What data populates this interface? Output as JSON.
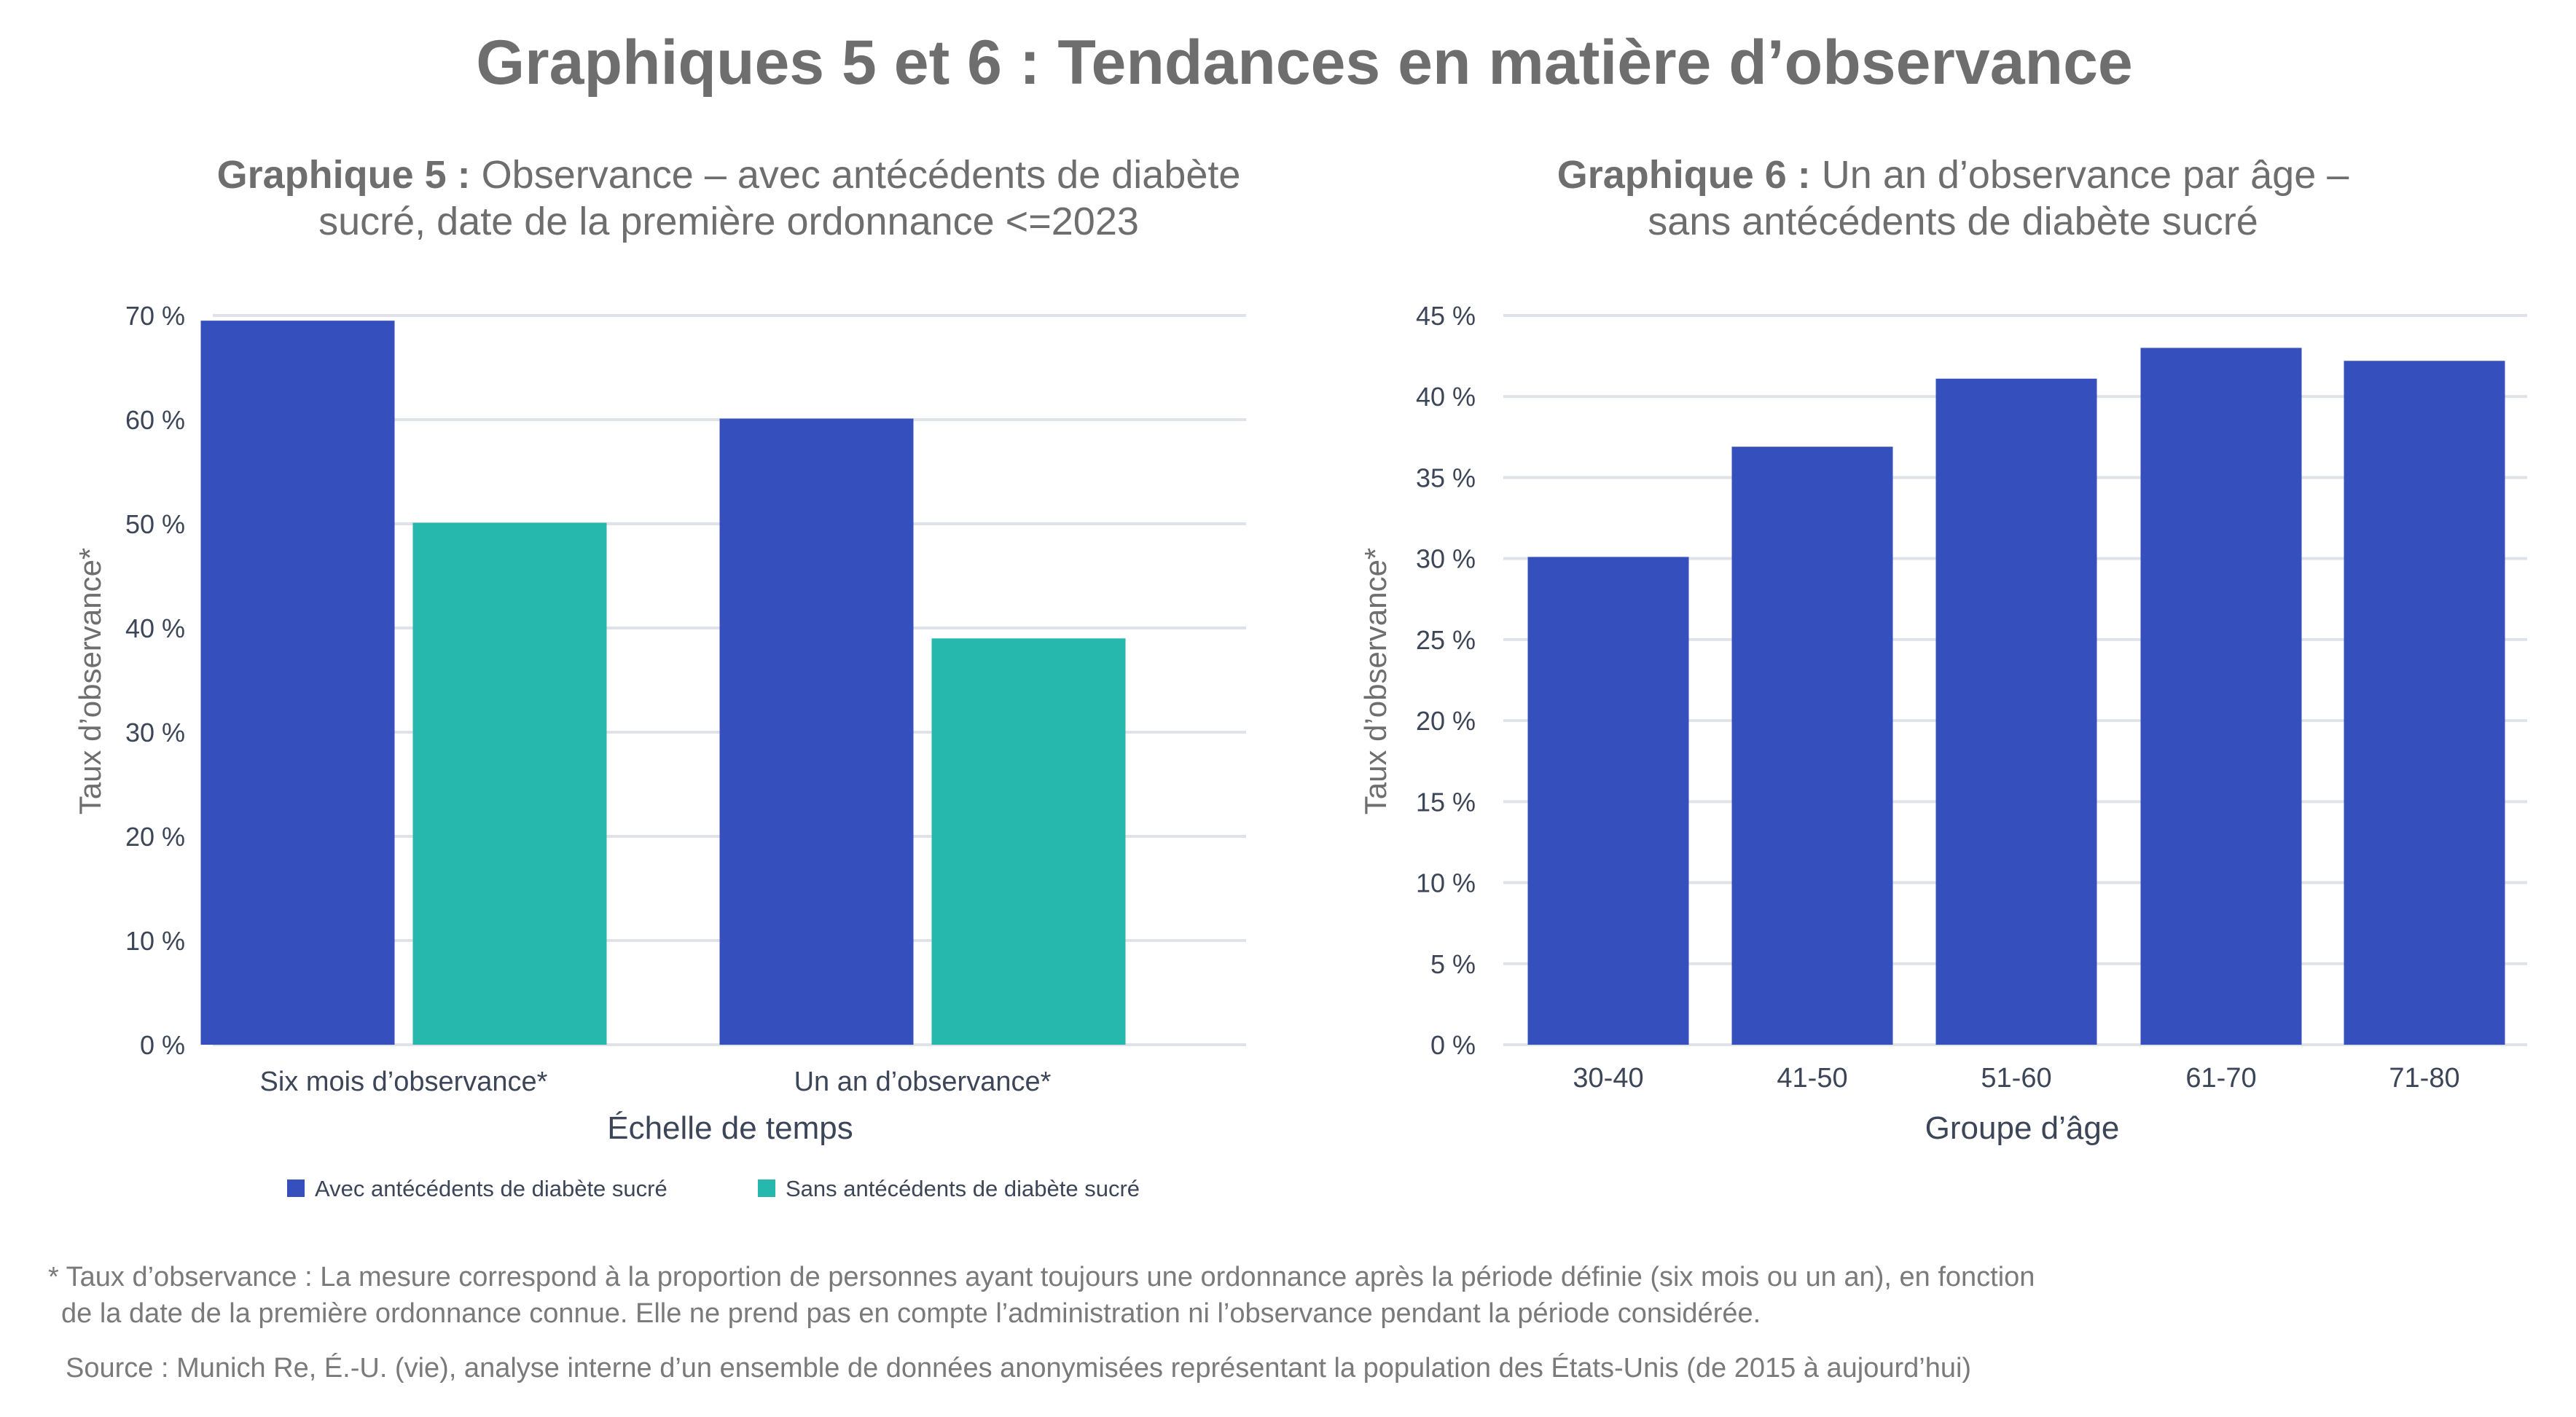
{
  "title": "Graphiques 5 et 6 : Tendances en matière d’observance",
  "colors": {
    "with_diabetes": "#3550bc",
    "without_diabetes": "#26b8ad",
    "grid": "#dfe2e8"
  },
  "chart_data": [
    {
      "type": "bar",
      "title_bold": "Graphique 5 :",
      "title_line1": "Observance – avec antécédents de diabète",
      "title_line2": "sucré, date de la première ordonnance <=2023",
      "xlabel": "Échelle de temps",
      "ylabel": "Taux d’observance*",
      "ylim": [
        0,
        70
      ],
      "yticks": [
        "0 %",
        "10 %",
        "20 %",
        "30 %",
        "40 %",
        "50 %",
        "60 %",
        "70 %"
      ],
      "categories": [
        "Six mois d’observance*",
        "Un an d’observance*"
      ],
      "series": [
        {
          "name": "Avec antécédents de diabète sucré",
          "color": "#3550bc",
          "values": [
            69.5,
            60.1
          ]
        },
        {
          "name": "Sans antécédents de diabète sucré",
          "color": "#26b8ad",
          "values": [
            50.1,
            39.0
          ]
        }
      ],
      "legend": "bottom",
      "grid": true
    },
    {
      "type": "bar",
      "title_bold": "Graphique 6 :",
      "title_line1": "Un an d’observance par âge –",
      "title_line2": "sans antécédents de diabète sucré",
      "xlabel": "Groupe d’âge",
      "ylabel": "Taux d’observance*",
      "ylim": [
        0,
        45
      ],
      "yticks": [
        "0 %",
        "5 %",
        "10 %",
        "15 %",
        "20 %",
        "25 %",
        "30 %",
        "35 %",
        "40 %",
        "45 %"
      ],
      "categories": [
        "30-40",
        "41-50",
        "51-60",
        "61-70",
        "71-80"
      ],
      "series": [
        {
          "color": "#3550bc",
          "values": [
            30.1,
            36.9,
            41.1,
            43.0,
            42.2
          ]
        }
      ],
      "grid": true
    }
  ],
  "footnote": {
    "line1": "* Taux d’observance : La mesure correspond à la proportion de personnes ayant toujours une ordonnance après la période définie (six mois ou un an), en fonction",
    "line2": "de la date de la première ordonnance connue. Elle ne prend pas en compte l’administration ni l’observance pendant la période considérée.",
    "source": "Source : Munich Re, É.-U. (vie), analyse interne d’un ensemble de données anonymisées représentant la population des États-Unis (de 2015 à aujourd’hui)"
  }
}
